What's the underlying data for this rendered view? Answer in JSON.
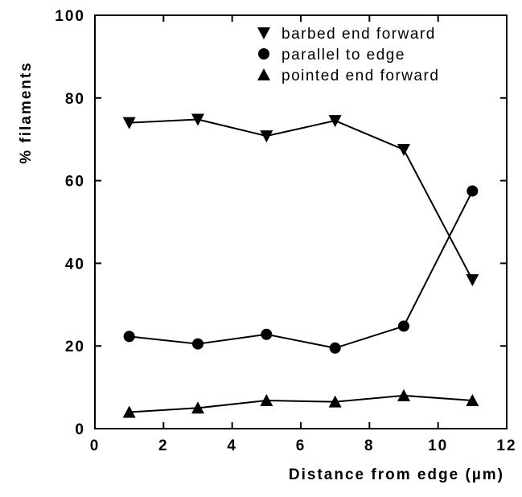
{
  "chart_data": {
    "type": "line",
    "title": "",
    "xlabel": "Distance from edge (µm)",
    "ylabel": "% filaments",
    "xlim": [
      0,
      12
    ],
    "ylim": [
      0,
      100
    ],
    "xticks": [
      0,
      2,
      4,
      6,
      8,
      10,
      12
    ],
    "yticks": [
      0,
      20,
      40,
      60,
      80,
      100
    ],
    "grid": false,
    "legend_position": "top-right",
    "x": [
      1,
      3,
      5,
      7,
      9,
      11
    ],
    "series": [
      {
        "name": "barbed end forward",
        "marker": "triangle-down",
        "values": [
          74,
          74.8,
          70.8,
          74.5,
          67.5,
          36
        ]
      },
      {
        "name": "parallel to edge",
        "marker": "circle",
        "values": [
          22.3,
          20.5,
          22.8,
          19.5,
          24.8,
          57.5
        ]
      },
      {
        "name": "pointed end forward",
        "marker": "triangle-up",
        "values": [
          4,
          5,
          6.8,
          6.5,
          8,
          6.8
        ]
      }
    ]
  }
}
